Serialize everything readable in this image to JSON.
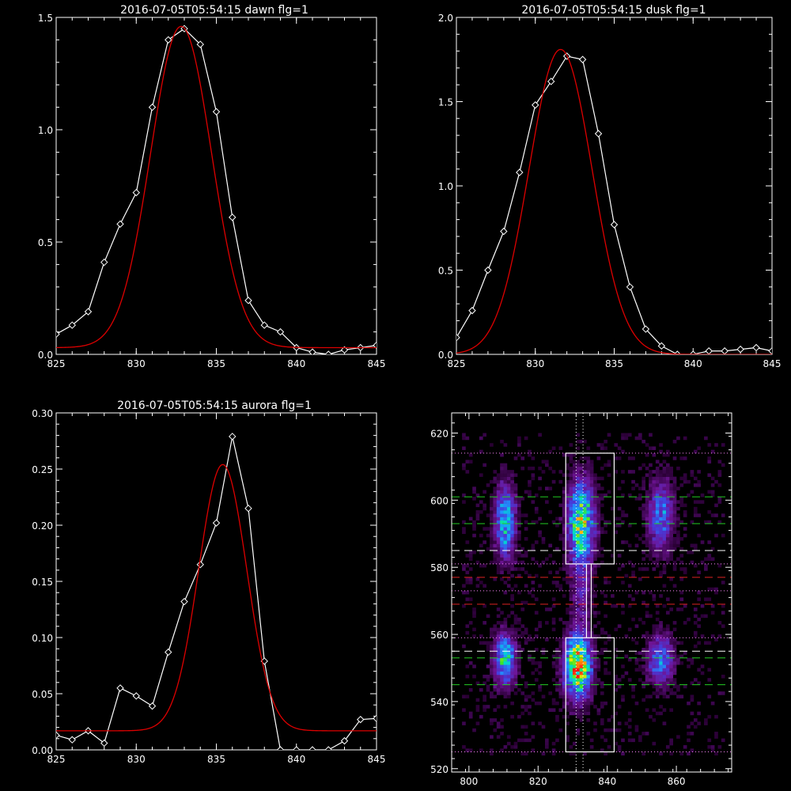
{
  "chart_data": [
    {
      "type": "line",
      "title": "2016-07-05T05:54:15 dawn flg=1",
      "xlim": [
        825,
        845
      ],
      "ylim": [
        0,
        1.5
      ],
      "xticks": [
        "825",
        "830",
        "835",
        "840",
        "845"
      ],
      "yticks": [
        "0.0",
        "0.5",
        "1.0",
        "1.5"
      ],
      "series": [
        {
          "role": "observed",
          "color": "#ffffff",
          "marker": "diamond",
          "x": [
            825,
            826,
            827,
            828,
            829,
            830,
            831,
            832,
            833,
            834,
            835,
            836,
            837,
            838,
            839,
            840,
            841,
            842,
            843,
            844,
            845
          ],
          "y": [
            0.09,
            0.13,
            0.19,
            0.41,
            0.58,
            0.72,
            1.1,
            1.4,
            1.45,
            1.38,
            1.08,
            0.61,
            0.24,
            0.13,
            0.1,
            0.03,
            0.01,
            0.0,
            0.02,
            0.03,
            0.04
          ]
        },
        {
          "role": "fit",
          "color": "#dd0000",
          "gauss": {
            "a": 1.43,
            "mu": 832.8,
            "sigma": 1.9,
            "c": 0.03
          }
        }
      ]
    },
    {
      "type": "line",
      "title": "2016-07-05T05:54:15 dusk flg=1",
      "xlim": [
        825,
        845
      ],
      "ylim": [
        0,
        2.0
      ],
      "xticks": [
        "825",
        "830",
        "835",
        "840",
        "845"
      ],
      "yticks": [
        "0.0",
        "0.5",
        "1.0",
        "1.5",
        "2.0"
      ],
      "series": [
        {
          "role": "observed",
          "color": "#ffffff",
          "marker": "diamond",
          "x": [
            825,
            826,
            827,
            828,
            829,
            830,
            831,
            832,
            833,
            834,
            835,
            836,
            837,
            838,
            839,
            840,
            841,
            842,
            843,
            844,
            845
          ],
          "y": [
            0.1,
            0.26,
            0.5,
            0.73,
            1.08,
            1.48,
            1.62,
            1.77,
            1.75,
            1.31,
            0.77,
            0.4,
            0.15,
            0.05,
            0.0,
            0.0,
            0.02,
            0.02,
            0.03,
            0.04,
            0.02
          ]
        },
        {
          "role": "fit",
          "color": "#dd0000",
          "gauss": {
            "a": 1.81,
            "mu": 831.6,
            "sigma": 2.0,
            "c": 0.0
          }
        }
      ]
    },
    {
      "type": "line",
      "title": "2016-07-05T05:54:15 aurora flg=1",
      "xlim": [
        825,
        845
      ],
      "ylim": [
        0,
        0.3
      ],
      "xticks": [
        "825",
        "830",
        "835",
        "840",
        "845"
      ],
      "yticks": [
        "0.00",
        "0.05",
        "0.10",
        "0.15",
        "0.20",
        "0.25",
        "0.30"
      ],
      "series": [
        {
          "role": "observed",
          "color": "#ffffff",
          "marker": "diamond",
          "x": [
            825,
            826,
            827,
            828,
            829,
            830,
            831,
            832,
            833,
            834,
            835,
            836,
            837,
            838,
            839,
            840,
            841,
            842,
            843,
            844,
            845
          ],
          "y": [
            0.013,
            0.009,
            0.017,
            0.006,
            0.055,
            0.048,
            0.039,
            0.087,
            0.132,
            0.165,
            0.202,
            0.279,
            0.215,
            0.079,
            0.0,
            0.0,
            0.0,
            0.0,
            0.008,
            0.027,
            0.028
          ]
        },
        {
          "role": "fit",
          "color": "#dd0000",
          "gauss": {
            "a": 0.237,
            "mu": 835.4,
            "sigma": 1.5,
            "c": 0.017
          }
        }
      ]
    },
    {
      "type": "heatmap",
      "title": "",
      "xlim": [
        795,
        876
      ],
      "ylim": [
        519,
        626
      ],
      "xticks": [
        "800",
        "820",
        "840",
        "860"
      ],
      "yticks": [
        "520",
        "540",
        "560",
        "580",
        "600",
        "620"
      ],
      "blobs": [
        {
          "x": 810,
          "y": 593,
          "sx": 2.0,
          "sy": 7.0,
          "amp": 0.55
        },
        {
          "x": 832,
          "y": 593,
          "sx": 2.5,
          "sy": 8.0,
          "amp": 0.75
        },
        {
          "x": 855,
          "y": 595,
          "sx": 2.5,
          "sy": 7.0,
          "amp": 0.38
        },
        {
          "x": 810,
          "y": 552,
          "sx": 2.0,
          "sy": 5.0,
          "amp": 0.62
        },
        {
          "x": 831,
          "y": 550,
          "sx": 2.5,
          "sy": 6.0,
          "amp": 0.95
        },
        {
          "x": 855,
          "y": 552,
          "sx": 2.5,
          "sy": 5.0,
          "amp": 0.42
        },
        {
          "x": 832,
          "y": 572,
          "sx": 2.0,
          "sy": 8.0,
          "amp": 0.18
        }
      ],
      "boxes": [
        {
          "x0": 828,
          "x1": 842,
          "y0": 581,
          "y1": 614
        },
        {
          "x0": 828,
          "x1": 842,
          "y0": 525,
          "y1": 559
        }
      ],
      "connector": {
        "x": 834,
        "y0": 559,
        "y1": 581
      },
      "vertical_dotted": [
        831,
        833
      ],
      "hlines": [
        {
          "y": 614,
          "color": "#ff88ff",
          "style": "dotted"
        },
        {
          "y": 601,
          "color": "#22cc22",
          "style": "dashed"
        },
        {
          "y": 593,
          "color": "#22cc22",
          "style": "dashed"
        },
        {
          "y": 585,
          "color": "#ffffff",
          "style": "dashed"
        },
        {
          "y": 581,
          "color": "#ff88ff",
          "style": "dotted"
        },
        {
          "y": 577,
          "color": "#dd2222",
          "style": "dashed"
        },
        {
          "y": 573,
          "color": "#ff88ff",
          "style": "dotted"
        },
        {
          "y": 569,
          "color": "#dd2222",
          "style": "dashed"
        },
        {
          "y": 559,
          "color": "#ff88ff",
          "style": "dotted"
        },
        {
          "y": 555,
          "color": "#ffffff",
          "style": "dashed"
        },
        {
          "y": 553,
          "color": "#22cc22",
          "style": "dashed"
        },
        {
          "y": 545,
          "color": "#22cc22",
          "style": "dashed"
        },
        {
          "y": 525,
          "color": "#ff88ff",
          "style": "dotted"
        }
      ]
    }
  ]
}
